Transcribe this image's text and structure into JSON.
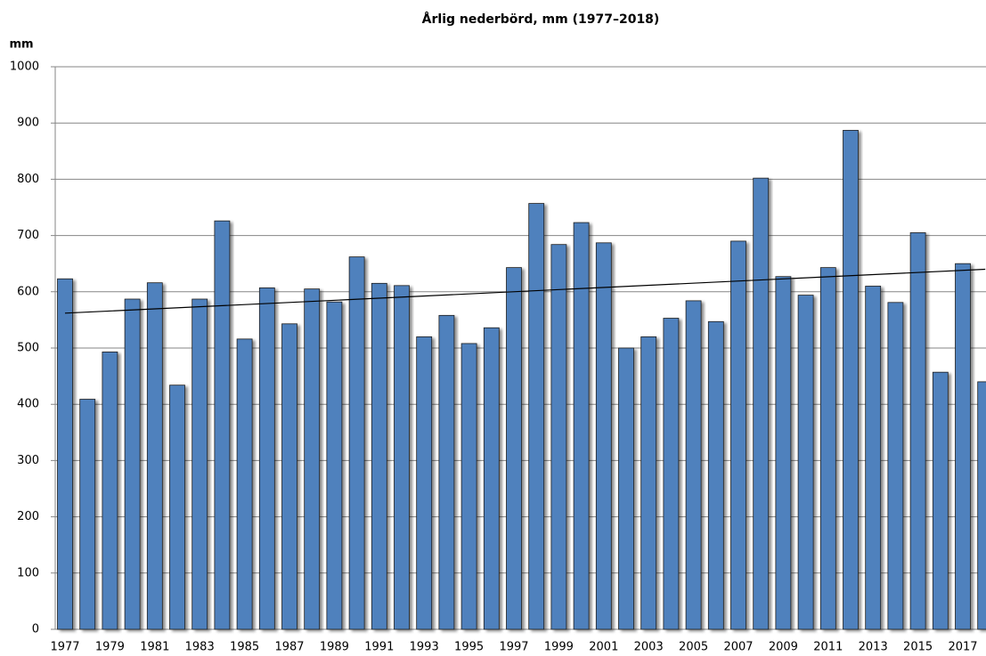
{
  "chart_data": {
    "type": "bar",
    "title": "Årlig nederbörd, mm (1977–2018)",
    "y_label": "mm",
    "categories": [
      "1977",
      null,
      "1979",
      null,
      "1981",
      null,
      "1983",
      null,
      "1985",
      null,
      "1987",
      null,
      "1989",
      null,
      "1991",
      null,
      "1993",
      null,
      "1995",
      null,
      "1997",
      null,
      "1999",
      null,
      "2001",
      null,
      "2003",
      null,
      "2005",
      null,
      "2007",
      null,
      "2009",
      null,
      "2011",
      null,
      "2013",
      null,
      "2015",
      null,
      "2017",
      null
    ],
    "values": [
      623,
      409,
      493,
      587,
      616,
      434,
      587,
      726,
      516,
      607,
      543,
      605,
      582,
      662,
      615,
      611,
      520,
      558,
      508,
      536,
      643,
      757,
      684,
      723,
      687,
      500,
      520,
      553,
      584,
      547,
      690,
      802,
      627,
      594,
      643,
      887,
      610,
      581,
      705,
      457,
      650,
      440
    ],
    "color": "#4f81bd",
    "trend": [
      562,
      640
    ],
    "ylim": [
      0,
      1000
    ],
    "yticks": [
      0,
      100,
      200,
      300,
      400,
      500,
      600,
      700,
      800,
      900,
      1000
    ],
    "grid": true
  }
}
